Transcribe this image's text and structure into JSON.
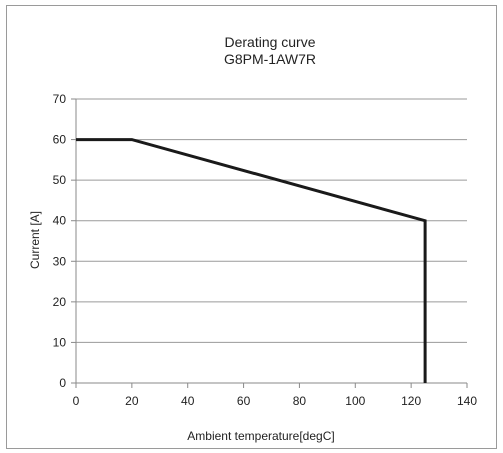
{
  "chart_data": {
    "type": "line",
    "title": "Derating curve",
    "subtitle": "G8PM-1AW7R",
    "xlabel": "Ambient temperature[degC]",
    "ylabel": "Current [A]",
    "xlim": [
      0,
      140
    ],
    "ylim": [
      0,
      70
    ],
    "xticks": [
      0,
      20,
      40,
      60,
      80,
      100,
      120,
      140
    ],
    "yticks": [
      0,
      10,
      20,
      30,
      40,
      50,
      60,
      70
    ],
    "grid": "horizontal",
    "legend": "none",
    "line_color": "#1a1a1a",
    "series": [
      {
        "x": [
          0,
          20,
          125,
          125
        ],
        "y": [
          60,
          60,
          40,
          0
        ]
      }
    ]
  }
}
